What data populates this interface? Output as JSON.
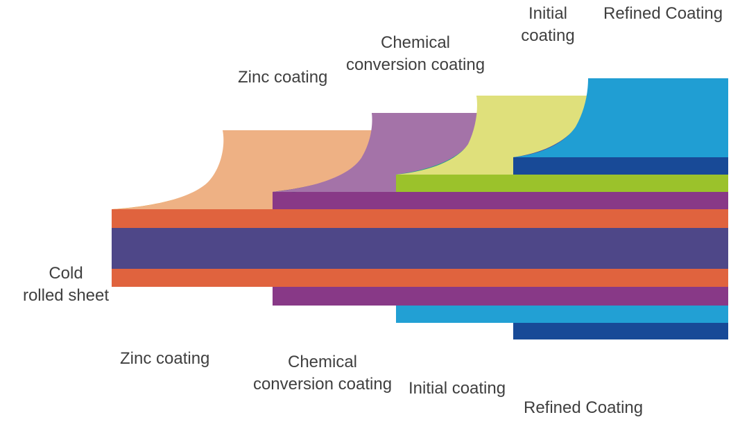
{
  "labels": {
    "top_zinc": "Zinc coating",
    "top_chemical_1": "Chemical",
    "top_chemical_2": "conversion coating",
    "top_initial_1": "Initial",
    "top_initial_2": "coating",
    "top_refined": "Refined Coating",
    "base_1": "Cold",
    "base_2": "rolled sheet",
    "bottom_zinc": "Zinc coating",
    "bottom_chemical_1": "Chemical",
    "bottom_chemical_2": "conversion coating",
    "bottom_initial": "Initial coating",
    "bottom_refined": "Refined Coating"
  },
  "colors": {
    "cold_rolled_core": "#4e4788",
    "zinc_layer": "#e0633e",
    "chemical_layer": "#883987",
    "initial_top_layer": "#9bc22b",
    "initial_bottom_layer": "#22a0d4",
    "refined_layer": "#184a97",
    "peel_zinc": "#eeb184",
    "peel_zinc_edge": "#e59923",
    "peel_chemical": "#a473a8",
    "peel_chemical_edge": "#183e7a",
    "peel_initial": "#dfe07b",
    "peel_initial_edge": "#22a08c",
    "peel_refined": "#209ed3",
    "peel_refined_edge": "#4d4b9a",
    "label_text": "#3f3f3f"
  }
}
